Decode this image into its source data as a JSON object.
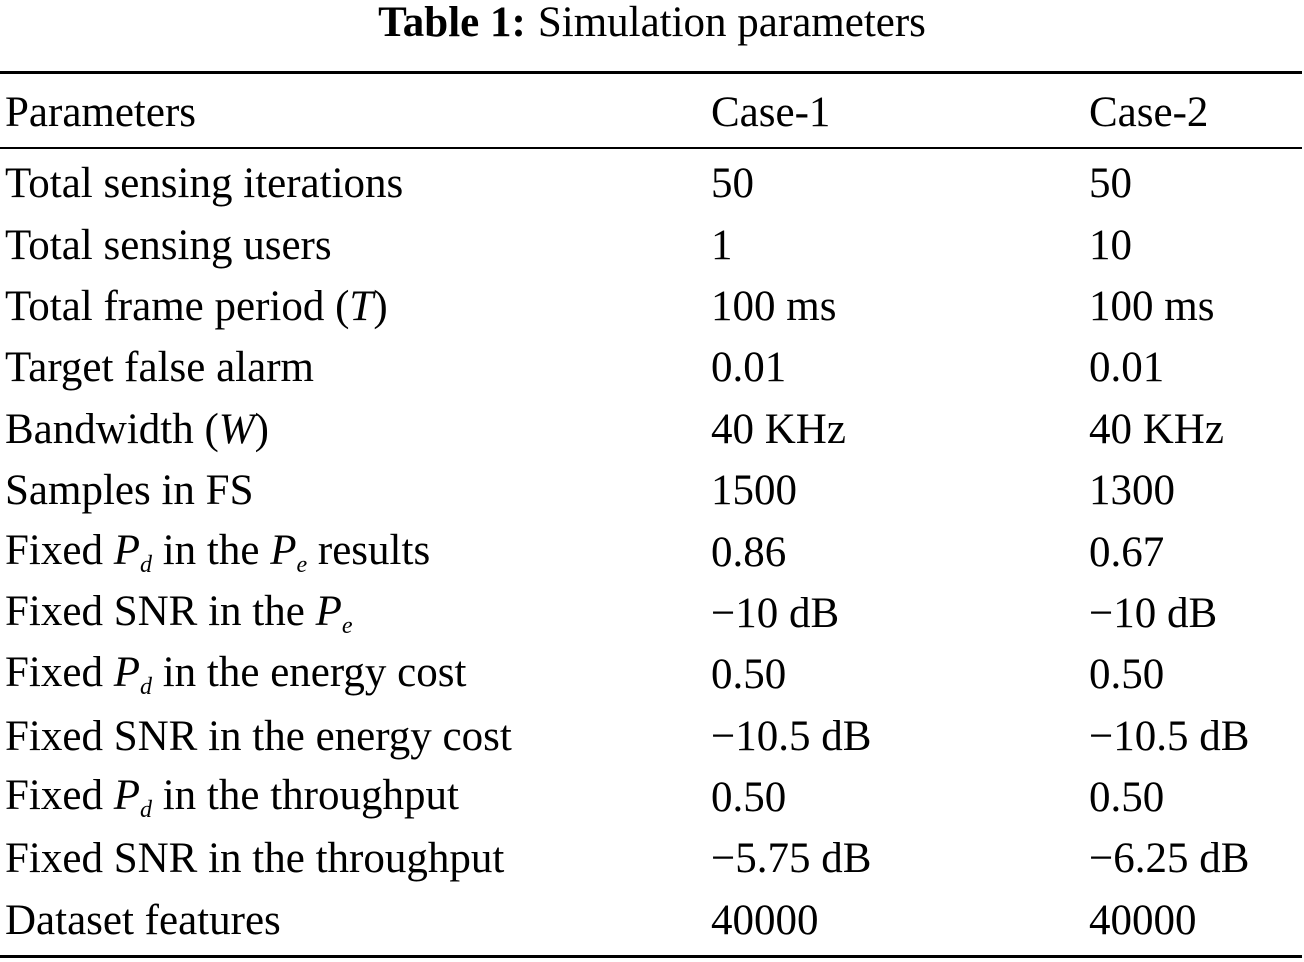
{
  "caption": {
    "label": "Table 1:",
    "title": "Simulation parameters"
  },
  "table": {
    "headers": [
      "Parameters",
      "Case-1",
      "Case-2"
    ],
    "rows": [
      {
        "param": "Total sensing iterations",
        "case1": "50",
        "case2": "50"
      },
      {
        "param": "Total sensing users",
        "case1": "1",
        "case2": "10"
      },
      {
        "param_pre": "Total frame period (",
        "param_sym": "T",
        "param_post": ")",
        "case1": "100 ms",
        "case2": "100 ms"
      },
      {
        "param": "Target false alarm",
        "case1": "0.01",
        "case2": "0.01"
      },
      {
        "param_pre": "Bandwidth (",
        "param_sym": "W",
        "param_post": ")",
        "case1": "40 KHz",
        "case2": "40 KHz"
      },
      {
        "param": "Samples in FS",
        "case1": "1500",
        "case2": "1300"
      },
      {
        "param_a": "Fixed ",
        "sym1": "P",
        "sub1": "d",
        "param_b": " in the ",
        "sym2": "P",
        "sub2": "e",
        "param_c": " results",
        "case1": "0.86",
        "case2": "0.67"
      },
      {
        "param_a": "Fixed SNR in the ",
        "sym1": "P",
        "sub1": "e",
        "case1": "−10 dB",
        "case2": "−10 dB"
      },
      {
        "param_a": "Fixed ",
        "sym1": "P",
        "sub1": "d",
        "param_b": " in the energy cost",
        "case1": "0.50",
        "case2": "0.50"
      },
      {
        "param": "Fixed SNR in the energy cost",
        "case1": "−10.5 dB",
        "case2": "−10.5 dB"
      },
      {
        "param_a": "Fixed ",
        "sym1": "P",
        "sub1": "d",
        "param_b": " in the throughput",
        "case1": "0.50",
        "case2": "0.50"
      },
      {
        "param": "Fixed SNR in the throughput",
        "case1": "−5.75 dB",
        "case2": "−6.25 dB"
      },
      {
        "param": "Dataset features",
        "case1": "40000",
        "case2": "40000"
      }
    ]
  }
}
